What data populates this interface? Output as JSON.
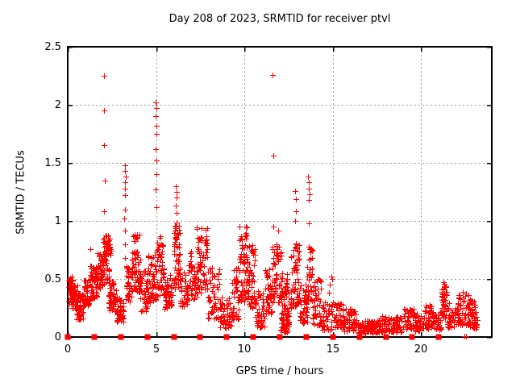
{
  "chart_data": {
    "type": "scatter",
    "title": "Day 208 of 2023, SRMTID for receiver ptvl",
    "xlabel": "GPS time / hours",
    "ylabel": "SRMTID / TECUs",
    "xlim": [
      0,
      24
    ],
    "ylim": [
      0,
      2.5
    ],
    "xticks": [
      [
        0,
        "0"
      ],
      [
        5,
        "5"
      ],
      [
        10,
        "10"
      ],
      [
        15,
        "15"
      ],
      [
        20,
        "20"
      ]
    ],
    "yticks": [
      [
        0,
        "0"
      ],
      [
        0.5,
        "0.5"
      ],
      [
        1,
        "1"
      ],
      [
        1.5,
        "1.5"
      ],
      [
        2,
        "2"
      ],
      [
        2.5,
        "2.5"
      ]
    ],
    "grid": true,
    "legend": "none",
    "marker_color": "#ff0000",
    "grid_color": "#9a9a9a",
    "seed": 20230208,
    "series": [
      {
        "name": "srmtid-plus-markers",
        "marker": "plus",
        "clusters": [
          [
            0.05,
            0.3,
            0.28,
            0.52,
            45
          ],
          [
            0.25,
            0.55,
            0.24,
            0.45,
            40
          ],
          [
            0.5,
            0.9,
            0.15,
            0.38,
            55
          ],
          [
            0.9,
            1.25,
            0.27,
            0.5,
            45
          ],
          [
            1.25,
            1.65,
            0.33,
            0.62,
            60
          ],
          [
            1.65,
            2.0,
            0.42,
            0.72,
            50
          ],
          [
            2.0,
            2.45,
            0.7,
            0.88,
            42
          ],
          [
            2.0,
            2.4,
            0.45,
            0.7,
            25
          ],
          [
            2.3,
            2.75,
            0.22,
            0.48,
            50
          ],
          [
            2.75,
            3.15,
            0.13,
            0.35,
            45
          ],
          [
            3.3,
            3.65,
            0.3,
            0.62,
            35
          ],
          [
            3.6,
            4.1,
            0.38,
            0.92,
            65
          ],
          [
            4.05,
            4.55,
            0.22,
            0.58,
            45
          ],
          [
            4.55,
            5.0,
            0.3,
            0.72,
            55
          ],
          [
            5.0,
            5.45,
            0.35,
            0.88,
            55
          ],
          [
            5.45,
            5.95,
            0.24,
            0.55,
            45
          ],
          [
            6.0,
            6.35,
            0.42,
            1.0,
            55
          ],
          [
            6.35,
            6.8,
            0.26,
            0.6,
            40
          ],
          [
            6.8,
            7.3,
            0.32,
            0.75,
            45
          ],
          [
            7.3,
            7.9,
            0.38,
            0.95,
            70
          ],
          [
            7.9,
            8.6,
            0.15,
            0.6,
            50
          ],
          [
            8.6,
            9.3,
            0.07,
            0.35,
            50
          ],
          [
            9.3,
            9.7,
            0.15,
            0.6,
            40
          ],
          [
            9.7,
            10.2,
            0.3,
            1.0,
            75
          ],
          [
            10.2,
            10.6,
            0.25,
            0.8,
            50
          ],
          [
            10.6,
            11.15,
            0.08,
            0.4,
            45
          ],
          [
            11.15,
            11.55,
            0.2,
            0.6,
            40
          ],
          [
            11.55,
            12.1,
            0.3,
            0.8,
            60
          ],
          [
            12.05,
            12.5,
            0.04,
            0.2,
            45
          ],
          [
            12.1,
            12.55,
            0.2,
            0.55,
            35
          ],
          [
            12.6,
            13.1,
            0.25,
            0.82,
            60
          ],
          [
            13.1,
            13.55,
            0.12,
            0.45,
            45
          ],
          [
            13.55,
            13.85,
            0.3,
            0.8,
            35
          ],
          [
            13.85,
            14.35,
            0.1,
            0.5,
            45
          ],
          [
            14.35,
            14.95,
            0.06,
            0.3,
            40
          ],
          [
            15.05,
            15.6,
            0.08,
            0.3,
            40
          ],
          [
            15.6,
            16.3,
            0.05,
            0.25,
            55
          ],
          [
            16.3,
            17.7,
            0.03,
            0.15,
            95
          ],
          [
            17.7,
            19.0,
            0.04,
            0.18,
            85
          ],
          [
            19.0,
            19.6,
            0.07,
            0.25,
            45
          ],
          [
            19.6,
            20.15,
            0.05,
            0.2,
            40
          ],
          [
            20.15,
            20.6,
            0.07,
            0.28,
            40
          ],
          [
            20.6,
            21.15,
            0.06,
            0.22,
            40
          ],
          [
            21.15,
            21.45,
            0.15,
            0.44,
            40
          ],
          [
            21.45,
            22.1,
            0.08,
            0.3,
            45
          ],
          [
            22.1,
            22.7,
            0.1,
            0.4,
            50
          ],
          [
            22.7,
            23.15,
            0.08,
            0.33,
            40
          ],
          [
            23.0,
            23.2,
            0.07,
            0.2,
            10
          ]
        ],
        "outliers": [
          [
            0.02,
            0.01
          ],
          [
            1.28,
            0.76
          ],
          [
            2.05,
            2.25
          ],
          [
            2.06,
            1.95
          ],
          [
            2.05,
            1.65
          ],
          [
            2.09,
            1.35
          ],
          [
            2.06,
            1.08
          ],
          [
            3.22,
            1.48
          ],
          [
            3.25,
            1.43
          ],
          [
            3.27,
            1.38
          ],
          [
            3.24,
            1.33
          ],
          [
            3.26,
            1.28
          ],
          [
            3.23,
            1.22
          ],
          [
            3.25,
            1.1
          ],
          [
            3.21,
            1.02
          ],
          [
            3.26,
            0.92
          ],
          [
            3.24,
            0.8
          ],
          [
            3.22,
            0.68
          ],
          [
            4.97,
            2.02
          ],
          [
            5.0,
            1.97
          ],
          [
            4.99,
            1.9
          ],
          [
            5.0,
            1.82
          ],
          [
            5.01,
            1.75
          ],
          [
            4.99,
            1.62
          ],
          [
            5.0,
            1.52
          ],
          [
            5.02,
            1.4
          ],
          [
            4.98,
            1.27
          ],
          [
            5.0,
            1.12
          ],
          [
            6.12,
            1.3
          ],
          [
            6.15,
            1.25
          ],
          [
            6.17,
            1.2
          ],
          [
            6.13,
            1.13
          ],
          [
            6.16,
            1.07
          ],
          [
            11.6,
            2.26
          ],
          [
            11.63,
            1.56
          ],
          [
            11.62,
            0.95
          ],
          [
            11.9,
            0.92
          ],
          [
            12.88,
            1.26
          ],
          [
            12.9,
            1.19
          ],
          [
            12.92,
            1.08
          ],
          [
            12.87,
            1.0
          ],
          [
            13.6,
            1.38
          ],
          [
            13.62,
            1.33
          ],
          [
            13.65,
            1.28
          ],
          [
            13.67,
            1.23
          ],
          [
            13.63,
            1.18
          ],
          [
            13.66,
            0.98
          ],
          [
            13.64,
            0.78
          ],
          [
            14.9,
            0.52
          ],
          [
            14.95,
            0.5
          ],
          [
            14.85,
            0.45
          ],
          [
            14.8,
            0.38
          ],
          [
            15.0,
            0.3
          ],
          [
            21.28,
            0.47
          ],
          [
            21.32,
            0.46
          ],
          [
            21.3,
            0.44
          ],
          [
            21.34,
            0.43
          ],
          [
            21.27,
            0.42
          ],
          [
            22.45,
            0.01
          ],
          [
            22.55,
            0.01
          ]
        ]
      },
      {
        "name": "baseline-square-markers",
        "marker": "square",
        "y": 0,
        "x": [
          0,
          1.5,
          3,
          4.5,
          6,
          7.5,
          9,
          10.5,
          12,
          13.5,
          15,
          16.5,
          18,
          19.5,
          21
        ]
      }
    ]
  }
}
